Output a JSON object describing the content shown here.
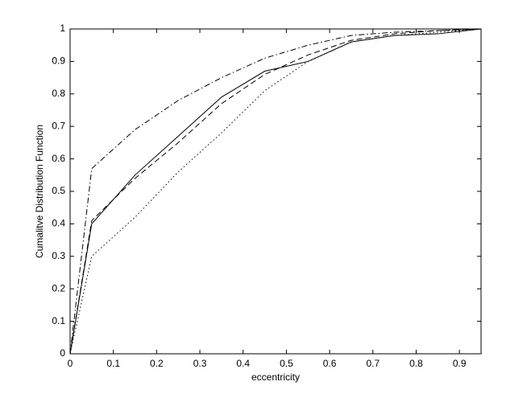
{
  "chart_data": {
    "type": "line",
    "x_label": "eccentricity",
    "y_label": "Cumalitve Distribution Function",
    "x": [
      0,
      0.05,
      0.15,
      0.25,
      0.35,
      0.45,
      0.55,
      0.65,
      0.75,
      0.85,
      0.95
    ],
    "series": [
      {
        "color": "#000000",
        "dash": "solid",
        "values": [
          0,
          0.4,
          0.55,
          0.67,
          0.79,
          0.87,
          0.9,
          0.96,
          0.98,
          0.985,
          1
        ]
      },
      {
        "color": "#000000",
        "dash": "dashed",
        "values": [
          0,
          0.41,
          0.54,
          0.65,
          0.77,
          0.86,
          0.92,
          0.965,
          0.985,
          0.995,
          1
        ]
      },
      {
        "color": "#000000",
        "dash": "dotted",
        "values": [
          0,
          0.3,
          0.42,
          0.56,
          0.68,
          0.81,
          0.9,
          0.96,
          0.98,
          0.99,
          1
        ]
      },
      {
        "color": "#000000",
        "dash": "dashdot",
        "values": [
          0,
          0.57,
          0.69,
          0.78,
          0.85,
          0.91,
          0.95,
          0.98,
          0.99,
          0.995,
          1
        ]
      }
    ],
    "xlim": [
      0,
      0.95
    ],
    "xticks": [
      0,
      0.1,
      0.2,
      0.3,
      0.4,
      0.5,
      0.6,
      0.7,
      0.8,
      0.9
    ],
    "ylim": [
      0,
      1
    ],
    "yticks": [
      0,
      0.1,
      0.2,
      0.3,
      0.4,
      0.5,
      0.6,
      0.7,
      0.8,
      0.9,
      1
    ],
    "grid": false
  }
}
